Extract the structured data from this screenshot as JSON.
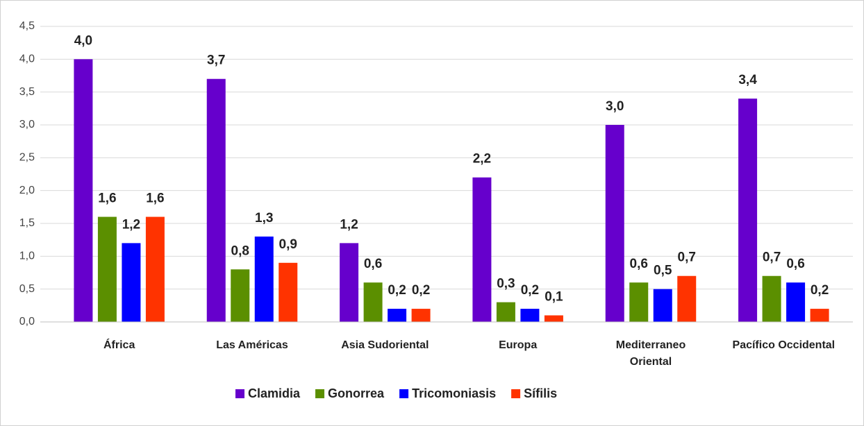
{
  "chart_data": {
    "type": "bar",
    "categories": [
      "África",
      "Las Américas",
      "Asia Sudoriental",
      "Europa",
      "Mediterraneo\nOriental",
      "Pacífico Occidental"
    ],
    "series": [
      {
        "name": "Clamidia",
        "color": "#6600cc",
        "values": [
          4.0,
          3.7,
          1.2,
          2.2,
          3.0,
          3.4
        ],
        "value_labels": [
          "4,0",
          "3,7",
          "1,2",
          "2,2",
          "3,0",
          "3,4"
        ]
      },
      {
        "name": "Gonorrea",
        "color": "#5b8f00",
        "values": [
          1.6,
          0.8,
          0.6,
          0.3,
          0.6,
          0.7
        ],
        "value_labels": [
          "1,6",
          "0,8",
          "0,6",
          "0,3",
          "0,6",
          "0,7"
        ]
      },
      {
        "name": "Tricomoniasis",
        "color": "#0000ff",
        "values": [
          1.2,
          1.3,
          0.2,
          0.2,
          0.5,
          0.6
        ],
        "value_labels": [
          "1,2",
          "1,3",
          "0,2",
          "0,2",
          "0,5",
          "0,6"
        ]
      },
      {
        "name": "Sífilis",
        "color": "#ff3300",
        "values": [
          1.6,
          0.9,
          0.2,
          0.1,
          0.7,
          0.2
        ],
        "value_labels": [
          "1,6",
          "0,9",
          "0,2",
          "0,1",
          "0,7",
          "0,2"
        ]
      }
    ],
    "ylim": [
      0,
      4.5
    ],
    "yticks": [
      {
        "value": 0,
        "label": "0,0"
      },
      {
        "value": 0.5,
        "label": "0,5"
      },
      {
        "value": 1,
        "label": "1,0"
      },
      {
        "value": 1.5,
        "label": "1,5"
      },
      {
        "value": 2,
        "label": "2,0"
      },
      {
        "value": 2.5,
        "label": "2,5"
      },
      {
        "value": 3,
        "label": "3,0"
      },
      {
        "value": 3.5,
        "label": "3,5"
      },
      {
        "value": 4,
        "label": "4,0"
      },
      {
        "value": 4.5,
        "label": "4,5"
      }
    ],
    "grid": true,
    "legend": "bottom"
  }
}
